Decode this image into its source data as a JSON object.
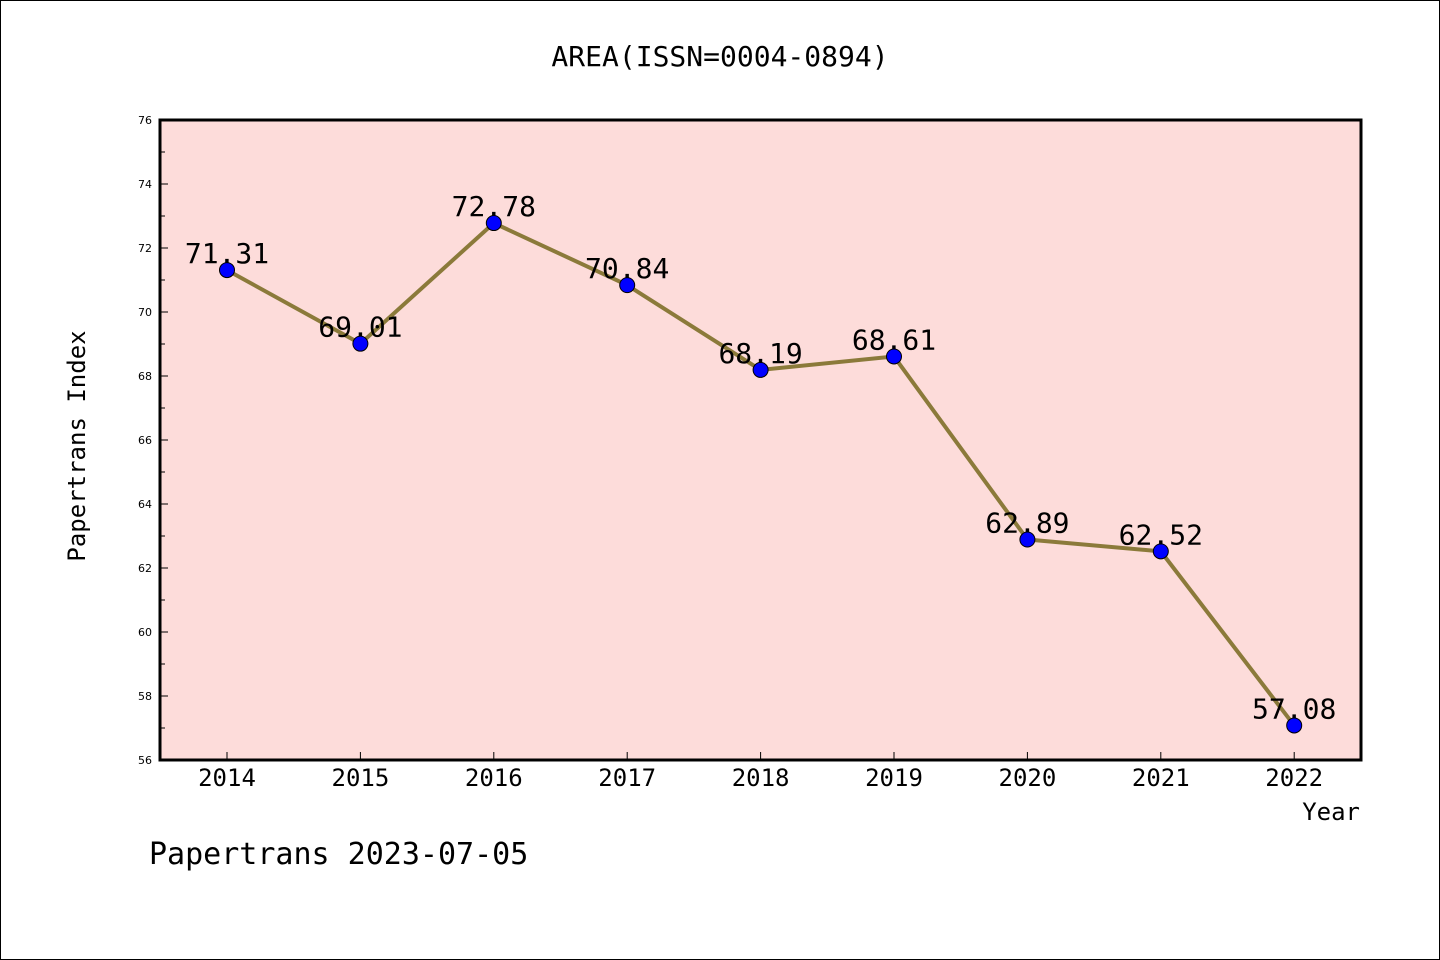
{
  "chart_data": {
    "type": "line",
    "title": "AREA(ISSN=0004-0894)",
    "xlabel": "Year",
    "ylabel": "Papertrans Index",
    "categories": [
      "2014",
      "2015",
      "2016",
      "2017",
      "2018",
      "2019",
      "2020",
      "2021",
      "2022"
    ],
    "values": [
      71.31,
      69.01,
      72.78,
      70.84,
      68.19,
      68.61,
      62.89,
      62.52,
      57.08
    ],
    "data_labels": [
      "71.31",
      "69.01",
      "72.78",
      "70.84",
      "68.19",
      "68.61",
      "62.89",
      "62.52",
      "57.08"
    ],
    "ylim": [
      56,
      76
    ],
    "yticks": [
      "56",
      "58",
      "60",
      "62",
      "64",
      "66",
      "68",
      "70",
      "72",
      "74",
      "76"
    ],
    "grid": false,
    "line_color": "#8b7a3a",
    "marker_color": "#0000ff",
    "plot_background": "#fddcda"
  },
  "footer": "Papertrans 2023-07-05"
}
